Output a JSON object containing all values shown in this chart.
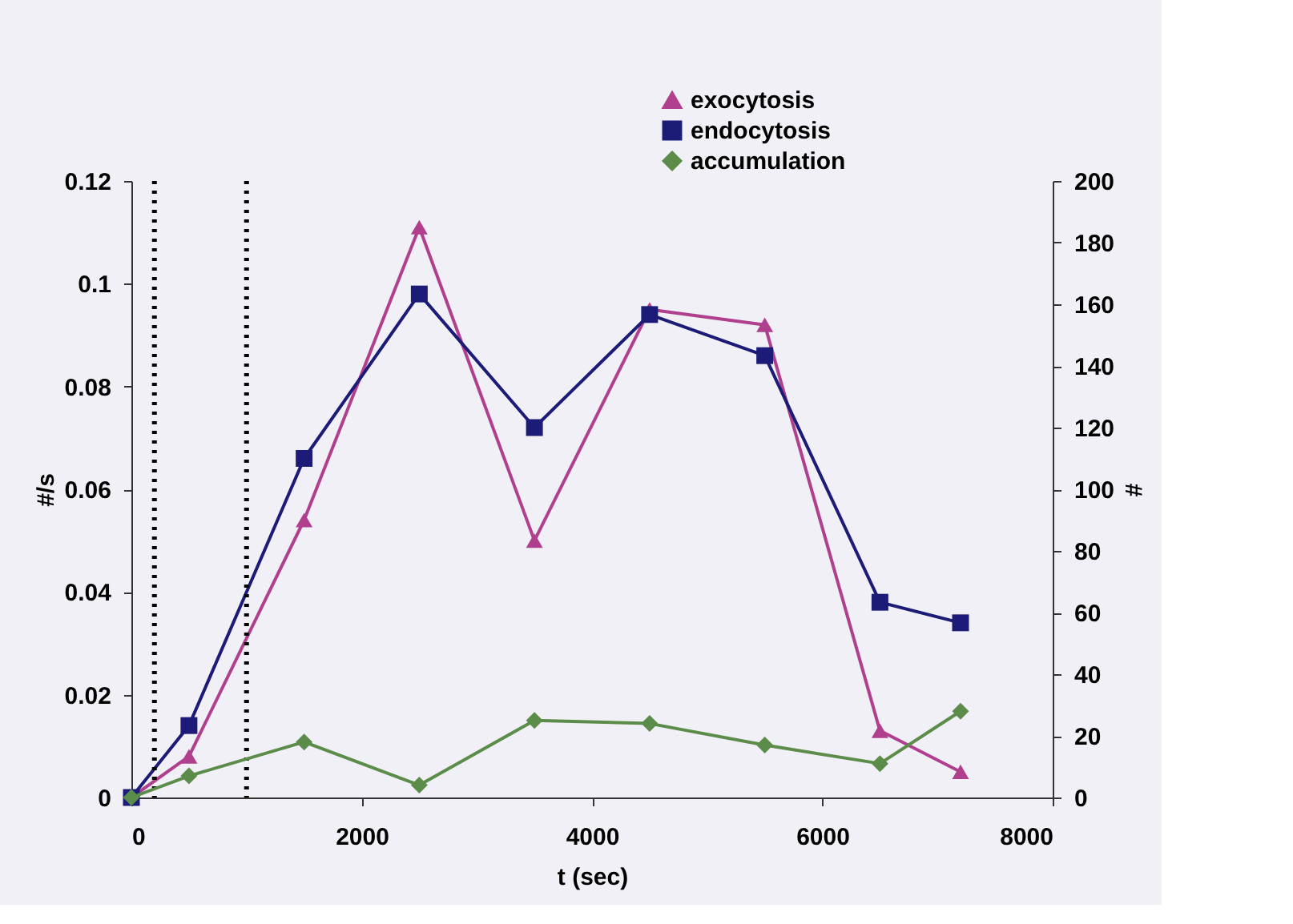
{
  "chart_data": {
    "type": "line",
    "xlabel": "t (sec)",
    "ylabel": "#/s",
    "y2label": "#",
    "x": [
      0,
      500,
      1500,
      2500,
      3500,
      4500,
      5500,
      6500,
      7200
    ],
    "series": [
      {
        "name": "exocytosis",
        "color": "#b0408e",
        "marker": "triangle",
        "values": [
          0,
          0.008,
          0.054,
          0.111,
          0.05,
          0.095,
          0.092,
          0.013,
          0.005
        ]
      },
      {
        "name": "endocytosis",
        "color": "#1c1c78",
        "marker": "square",
        "values": [
          0,
          0.014,
          0.066,
          0.098,
          0.072,
          0.094,
          0.086,
          0.038,
          0.034
        ]
      },
      {
        "name": "accumulation",
        "color": "#5b8c4a",
        "marker": "diamond",
        "axis": "y2",
        "values": [
          0,
          7,
          18,
          4,
          25,
          24,
          17,
          11,
          28
        ]
      }
    ],
    "xlim": [
      0,
      8000
    ],
    "xticks": [
      0,
      2000,
      4000,
      6000,
      8000
    ],
    "ylim": [
      0,
      0.12
    ],
    "yticks": [
      0,
      0.02,
      0.04,
      0.06,
      0.08,
      0.1,
      0.12
    ],
    "y2lim": [
      0,
      200
    ],
    "y2ticks": [
      0,
      20,
      40,
      60,
      80,
      100,
      120,
      140,
      160,
      180,
      200
    ],
    "ref_lines": [
      {
        "axis": "x",
        "value": 200,
        "color": "#000000",
        "line_style": "dotted"
      },
      {
        "axis": "x",
        "value": 1000,
        "color": "#000000",
        "line_style": "dotted"
      }
    ],
    "grid": false,
    "legend": "top right",
    "line_style": "solid"
  }
}
